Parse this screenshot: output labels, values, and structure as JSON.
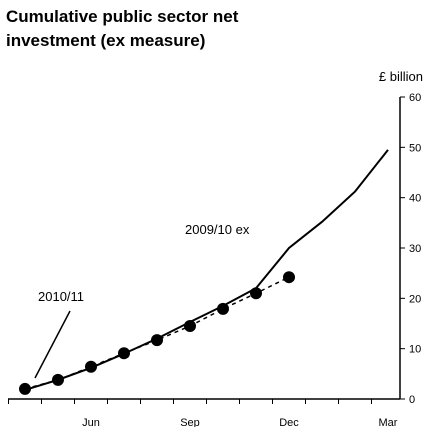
{
  "chart_data": {
    "type": "line",
    "title": [
      "Cumulative public sector net",
      "investment (ex measure)"
    ],
    "y_label": "£ billion",
    "categories": [
      null,
      null,
      "Jun",
      null,
      null,
      "Sep",
      null,
      null,
      "Dec",
      null,
      null,
      "Mar"
    ],
    "series": [
      {
        "name": "2009/10 ex",
        "color": "#000000",
        "mark": "line",
        "values": [
          1.8,
          3.8,
          6.2,
          9,
          12,
          15.3,
          18.5,
          22,
          30,
          35.2,
          41.2,
          49.5
        ]
      },
      {
        "name": "2010/11",
        "color": "#000000",
        "mark": "dot-dashed",
        "values": [
          2,
          3.8,
          6.4,
          9.1,
          11.7,
          14.5,
          17.9,
          21,
          24.2,
          null,
          null,
          null
        ]
      }
    ],
    "ylim": [
      0,
      60
    ],
    "yticks": [
      0,
      10,
      20,
      30,
      40,
      50,
      60
    ],
    "y_axis_side": "right"
  }
}
